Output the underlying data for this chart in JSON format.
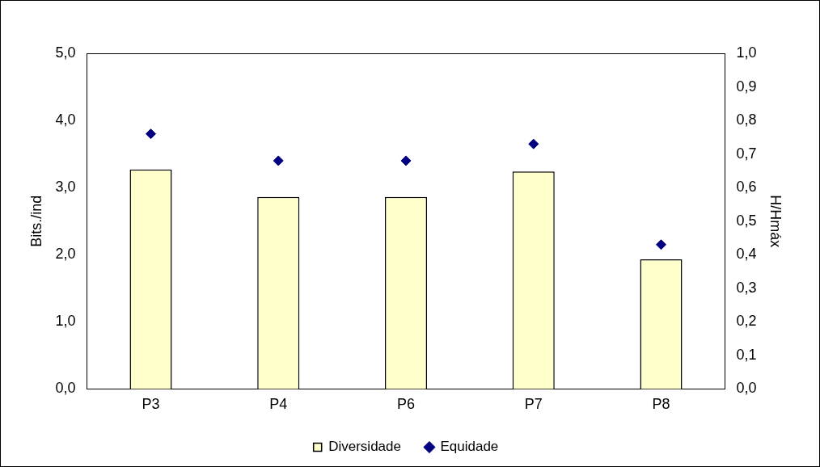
{
  "chart_data": {
    "type": "bar",
    "ylabel": "Bits./ind",
    "y2label": "H/Hmáx",
    "categories": [
      "P3",
      "P4",
      "P6",
      "P7",
      "P8"
    ],
    "series": [
      {
        "name": "Diversidade",
        "color": "#ffffcc",
        "values": [
          3.27,
          2.86,
          2.86,
          3.24,
          1.93
        ]
      },
      {
        "name": "Equidade",
        "type": "scatter",
        "axis": "y2",
        "marker": "diamond",
        "color": "#000080",
        "x": [
          "P3",
          "P4",
          "P6",
          "P7",
          "P8"
        ],
        "values": [
          0.76,
          0.68,
          0.68,
          0.73,
          0.43
        ]
      }
    ],
    "ylim": [
      0,
      5
    ],
    "yticks": [
      {
        "value": 0,
        "label": "0,0"
      },
      {
        "value": 1,
        "label": "1,0"
      },
      {
        "value": 2,
        "label": "2,0"
      },
      {
        "value": 3,
        "label": "3,0"
      },
      {
        "value": 4,
        "label": "4,0"
      },
      {
        "value": 5,
        "label": "5,0"
      }
    ],
    "y2lim": [
      0,
      1
    ],
    "y2ticks": [
      {
        "value": 0,
        "label": "0,0"
      },
      {
        "value": 0.1,
        "label": "0,1"
      },
      {
        "value": 0.2,
        "label": "0,2"
      },
      {
        "value": 0.3,
        "label": "0,3"
      },
      {
        "value": 0.4,
        "label": "0,4"
      },
      {
        "value": 0.5,
        "label": "0,5"
      },
      {
        "value": 0.6,
        "label": "0,6"
      },
      {
        "value": 0.7,
        "label": "0,7"
      },
      {
        "value": 0.8,
        "label": "0,8"
      },
      {
        "value": 0.9,
        "label": "0,9"
      },
      {
        "value": 1,
        "label": "1,0"
      }
    ],
    "grid": false,
    "legend": "bottom"
  }
}
